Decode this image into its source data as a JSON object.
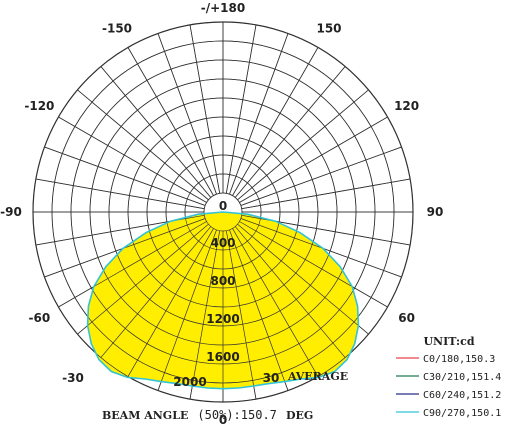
{
  "chart_data": {
    "type": "polar",
    "unit_label": "UNIT:cd",
    "beam_angle": {
      "prefix": "BEAM ANGLE",
      "middle": "(50%):150.7",
      "suffix": "DEG"
    },
    "average_label": "AVERAGE",
    "angle_ticks": [
      {
        "angle": 180,
        "label": "-/+180"
      },
      {
        "angle": -150,
        "label": "-150"
      },
      {
        "angle": 150,
        "label": "150"
      },
      {
        "angle": -120,
        "label": "-120"
      },
      {
        "angle": 120,
        "label": "120"
      },
      {
        "angle": -90,
        "label": "-90"
      },
      {
        "angle": 90,
        "label": "90"
      },
      {
        "angle": -60,
        "label": "-60"
      },
      {
        "angle": 60,
        "label": "60"
      },
      {
        "angle": -30,
        "label": "-30"
      },
      {
        "angle": 30,
        "label": "30"
      },
      {
        "angle": 0,
        "label": "0"
      }
    ],
    "radial_ticks": [
      {
        "value": 0,
        "label": "0"
      },
      {
        "value": 400,
        "label": "400"
      },
      {
        "value": 800,
        "label": "800"
      },
      {
        "value": 1200,
        "label": "1200"
      },
      {
        "value": 1600,
        "label": "1600"
      },
      {
        "value": 2000,
        "label": "2000"
      }
    ],
    "radial_max": 2000,
    "legend": [
      {
        "label": "C0/180,150.3",
        "color": "#e8434b"
      },
      {
        "label": "C30/210,151.4",
        "color": "#1f7a52"
      },
      {
        "label": "C60/240,151.2",
        "color": "#2a2f8a"
      },
      {
        "label": "C90/270,150.1",
        "color": "#31c3d6"
      }
    ],
    "fill_color": "#ffee00",
    "series": {
      "name": "C90/270,150.1",
      "angles": [
        -90,
        -85,
        -80,
        -75,
        -70,
        -65,
        -60,
        -55,
        -50,
        -45,
        -40,
        -35,
        -30,
        -25,
        -20,
        -15,
        -10,
        -5,
        0,
        5,
        10,
        15,
        20,
        25,
        30,
        35,
        40,
        45,
        50,
        55,
        60,
        65,
        70,
        75,
        80,
        85,
        90
      ],
      "values": [
        0,
        260,
        560,
        840,
        1120,
        1360,
        1570,
        1730,
        1860,
        1960,
        2030,
        2050,
        2010,
        1940,
        1900,
        1870,
        1860,
        1860,
        1860,
        1860,
        1860,
        1870,
        1900,
        1940,
        2010,
        2050,
        2030,
        1960,
        1860,
        1730,
        1570,
        1360,
        1120,
        840,
        560,
        260,
        0
      ]
    }
  }
}
